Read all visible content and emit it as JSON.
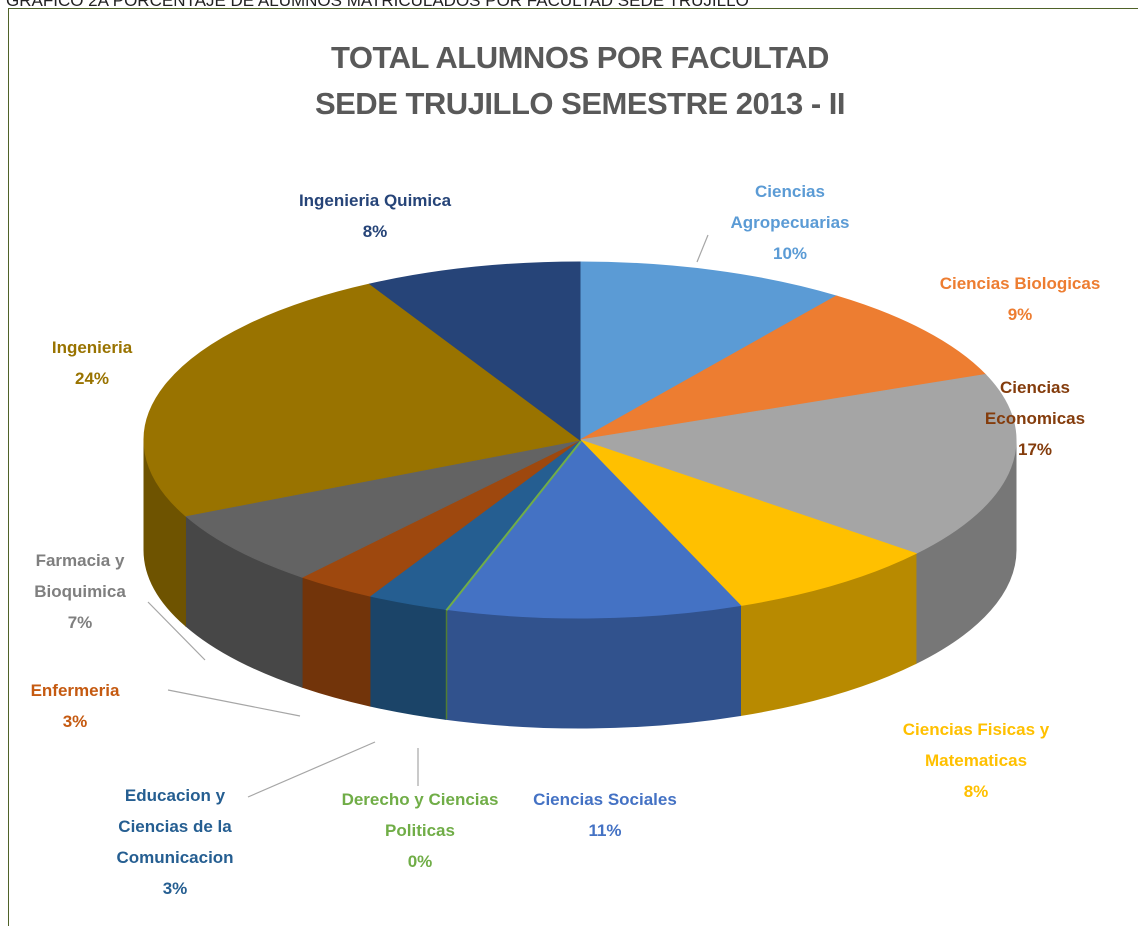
{
  "header": "GRAFICO 2A PORCENTAJE DE ALUMNOS MATRICULADOS POR FACULTAD SEDE TRUJILLO",
  "chart_data": {
    "type": "pie",
    "title": "TOTAL ALUMNOS POR FACULTAD",
    "subtitle": "SEDE TRUJILLO SEMESTRE 2013 - II",
    "categories": [
      "Ciencias Agropecuarias",
      "Ciencias Biologicas",
      "Ciencias Economicas",
      "Ciencias Fisicas y Matematicas",
      "Ciencias Sociales",
      "Derecho y Ciencias Politicas",
      "Educacion y Ciencias de la Comunicacion",
      "Enfermeria",
      "Farmacia y Bioquimica",
      "Ingenieria",
      "Ingenieria Quimica"
    ],
    "values": [
      10,
      9,
      17,
      8,
      11,
      0,
      3,
      3,
      7,
      24,
      8
    ],
    "value_labels": [
      "10%",
      "9%",
      "17%",
      "8%",
      "11%",
      "0%",
      "3%",
      "3%",
      "7%",
      "24%",
      "8%"
    ],
    "colors": [
      "#5b9bd5",
      "#ed7d31",
      "#a5a5a5",
      "#ffc000",
      "#4472c4",
      "#70ad47",
      "#255e91",
      "#9e480e",
      "#636363",
      "#997300",
      "#264478"
    ],
    "label_colors": [
      "#5b9bd5",
      "#ed7d31",
      "#843c0c",
      "#ffc000",
      "#4472c4",
      "#70ad47",
      "#255e91",
      "#c55a11",
      "#7f7f7f",
      "#997300",
      "#264478"
    ],
    "style": "3d"
  }
}
